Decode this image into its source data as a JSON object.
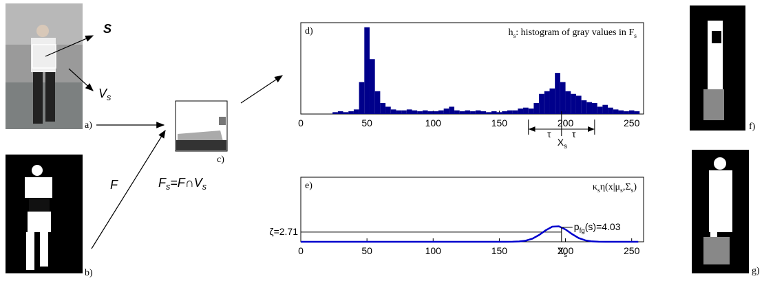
{
  "figure": {
    "photo_label": "a)",
    "mask_label": "b)",
    "patch_label": "c)",
    "result1_label": "f)",
    "result2_label": "g)",
    "s_label": "S",
    "v_label": [
      {
        "text": "V"
      },
      {
        "text": "s",
        "sub": true
      }
    ],
    "f_label": "F",
    "fs_formula": [
      {
        "text": "F"
      },
      {
        "text": "s",
        "sub": true
      },
      {
        "text": "=F"
      },
      {
        "text": "∩"
      },
      {
        "text": "V"
      },
      {
        "text": "s",
        "sub": true
      }
    ]
  },
  "chart_data": [
    {
      "type": "histogram",
      "panel": "d)",
      "title_parts": [
        {
          "text": "h"
        },
        {
          "text": "s",
          "sub": true
        },
        {
          "text": ": histogram of gray values in "
        },
        {
          "text": "F"
        },
        {
          "text": "s",
          "sub": true
        }
      ],
      "color": "#00008b",
      "bins": [
        0,
        4,
        8,
        12,
        16,
        20,
        24,
        28,
        32,
        36,
        40,
        44,
        48,
        52,
        56,
        60,
        64,
        68,
        72,
        76,
        80,
        84,
        88,
        92,
        96,
        100,
        104,
        108,
        112,
        116,
        120,
        124,
        128,
        132,
        136,
        140,
        144,
        148,
        152,
        156,
        160,
        164,
        168,
        172,
        176,
        180,
        184,
        188,
        192,
        196,
        200,
        204,
        208,
        212,
        216,
        220,
        224,
        228,
        232,
        236,
        240,
        244,
        248,
        252,
        256
      ],
      "counts": [
        0,
        0,
        0,
        0,
        0,
        0,
        0.02,
        0.03,
        0.02,
        0.03,
        0.05,
        0.35,
        0.95,
        0.6,
        0.25,
        0.12,
        0.08,
        0.05,
        0.04,
        0.04,
        0.05,
        0.04,
        0.03,
        0.04,
        0.03,
        0.03,
        0.04,
        0.06,
        0.08,
        0.04,
        0.03,
        0.04,
        0.03,
        0.04,
        0.03,
        0.02,
        0.03,
        0.02,
        0.03,
        0.04,
        0.04,
        0.06,
        0.07,
        0.06,
        0.12,
        0.22,
        0.25,
        0.28,
        0.45,
        0.35,
        0.25,
        0.22,
        0.2,
        0.15,
        0.13,
        0.12,
        0.08,
        0.1,
        0.07,
        0.05,
        0.04,
        0.03,
        0.04,
        0.03
      ],
      "xlim": [
        0,
        259
      ],
      "ylim": [
        0,
        1
      ],
      "xticks": [
        0,
        50,
        100,
        150,
        200,
        250
      ],
      "xs_marker": {
        "x": 197,
        "label_parts": [
          {
            "text": "X"
          },
          {
            "text": "s",
            "sub": true
          }
        ]
      },
      "tau": {
        "from": 172,
        "to": 222,
        "labels": [
          "τ",
          "τ"
        ]
      }
    },
    {
      "type": "line",
      "panel": "e)",
      "title_parts": [
        {
          "text": "κ"
        },
        {
          "text": "s",
          "sub": true
        },
        {
          "text": "η(x|μ"
        },
        {
          "text": "s",
          "sub": true
        },
        {
          "text": ",Σ"
        },
        {
          "text": "s",
          "sub": true
        },
        {
          "text": ")"
        }
      ],
      "color": "#0000cd",
      "x": [
        0,
        5,
        10,
        15,
        20,
        25,
        30,
        35,
        40,
        45,
        50,
        55,
        60,
        65,
        70,
        75,
        80,
        85,
        90,
        95,
        100,
        105,
        110,
        115,
        120,
        125,
        130,
        135,
        140,
        145,
        150,
        155,
        160,
        165,
        170,
        175,
        180,
        185,
        190,
        195,
        200,
        205,
        210,
        215,
        220,
        225,
        230,
        235,
        240,
        245,
        250,
        255
      ],
      "values": [
        0,
        0,
        0,
        0,
        0,
        0,
        0,
        0,
        0,
        0,
        0,
        0,
        0,
        0,
        0,
        0,
        0,
        0,
        0,
        0,
        0,
        0,
        0,
        0,
        0,
        0.01,
        0.01,
        0.01,
        0.01,
        0.01,
        0.01,
        0.01,
        0.02,
        0.09,
        0.31,
        0.87,
        1.89,
        3.19,
        4.21,
        4.31,
        3.44,
        2.14,
        1.04,
        0.39,
        0.11,
        0.03,
        0.01,
        0,
        0,
        0,
        0,
        0
      ],
      "xlim": [
        0,
        259
      ],
      "ylim": [
        0,
        18
      ],
      "xticks": [
        0,
        50,
        100,
        150,
        200,
        250
      ],
      "threshold": {
        "value": 2.71,
        "label": "ζ=2.71"
      },
      "pfg": {
        "x": 197,
        "value": 4.03,
        "label_parts": [
          {
            "text": "p"
          },
          {
            "text": "fg",
            "sub": true
          },
          {
            "text": "(s)=4.03"
          }
        ]
      },
      "xs_marker": {
        "x": 197,
        "label_parts": [
          {
            "text": "X"
          },
          {
            "text": "s",
            "sub": true
          }
        ]
      }
    }
  ]
}
